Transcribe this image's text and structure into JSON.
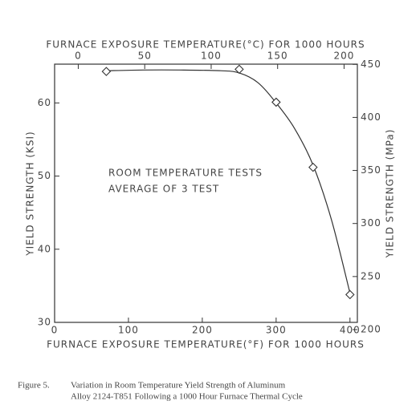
{
  "chart_data": {
    "type": "scatter",
    "title": "FURNACE EXPOSURE TEMPERATURE(°C) FOR 1000 HOURS",
    "x_label": "FURNACE EXPOSURE TEMPERATURE(°F) FOR 1000 HOURS",
    "y_label": "YIELD STRENGTH (KSI)",
    "y2_label": "YIELD STRENGTH (MPa)",
    "annotations": [
      "ROOM TEMPERATURE TESTS",
      "AVERAGE OF 3 TEST"
    ],
    "caption": [
      "Figure 5.",
      "Variation in Room Temperature Yield Strength of Aluminum",
      "Alloy 2124-T851 Following a 1000 Hour Furnace Thermal Cycle"
    ],
    "xlim": [
      0,
      410
    ],
    "xticks": [
      0,
      100,
      200,
      300,
      400
    ],
    "x2lim": [
      -17.8,
      210
    ],
    "x2ticks": [
      0,
      50,
      100,
      150,
      200
    ],
    "ylim": [
      30,
      65.3
    ],
    "yticks": [
      30,
      40,
      50,
      60
    ],
    "y2lim": [
      206.8,
      450.2
    ],
    "y2ticks": [
      200,
      250,
      300,
      350,
      400,
      450
    ],
    "series": [
      {
        "mode": "line",
        "color": "#333333",
        "x": [
          70,
          120,
          170,
          225,
          250,
          275,
          300,
          325,
          350,
          375,
          400
        ],
        "values": [
          64.4,
          64.5,
          64.5,
          64.4,
          64.1,
          62.8,
          60.0,
          56.5,
          51.5,
          44.0,
          34.0
        ]
      },
      {
        "mode": "markers",
        "color": "#333333",
        "x": [
          70,
          250,
          300,
          350,
          400
        ],
        "values": [
          64.3,
          64.6,
          60.1,
          51.2,
          33.8
        ]
      }
    ]
  }
}
